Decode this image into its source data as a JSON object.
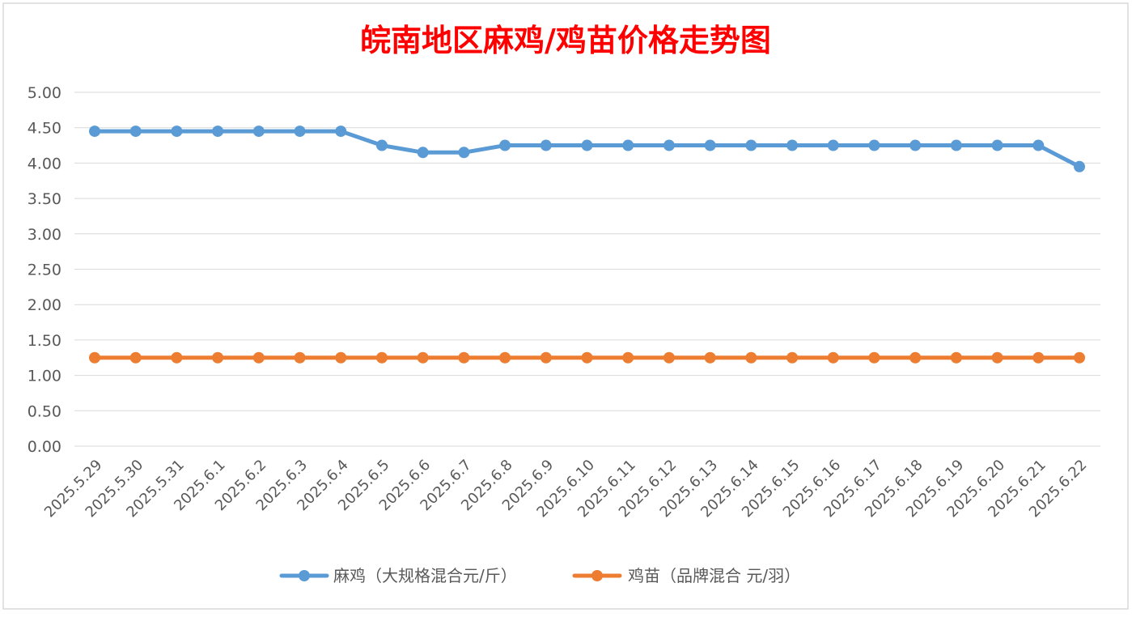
{
  "chart_data": {
    "type": "line",
    "title": "皖南地区麻鸡/鸡苗价格走势图",
    "title_color": "#ff0000",
    "categories": [
      "2025.5.29",
      "2025.5.30",
      "2025.5.31",
      "2025.6.1",
      "2025.6.2",
      "2025.6.3",
      "2025.6.4",
      "2025.6.5",
      "2025.6.6",
      "2025.6.7",
      "2025.6.8",
      "2025.6.9",
      "2025.6.10",
      "2025.6.11",
      "2025.6.12",
      "2025.6.13",
      "2025.6.14",
      "2025.6.15",
      "2025.6.16",
      "2025.6.17",
      "2025.6.18",
      "2025.6.19",
      "2025.6.20",
      "2025.6.21",
      "2025.6.22"
    ],
    "series": [
      {
        "name": "麻鸡（大规格混合元/斤）",
        "color": "#5b9bd5",
        "values": [
          4.45,
          4.45,
          4.45,
          4.45,
          4.45,
          4.45,
          4.45,
          4.25,
          4.15,
          4.15,
          4.25,
          4.25,
          4.25,
          4.25,
          4.25,
          4.25,
          4.25,
          4.25,
          4.25,
          4.25,
          4.25,
          4.25,
          4.25,
          4.25,
          3.95
        ]
      },
      {
        "name": "鸡苗（品牌混合 元/羽）",
        "color": "#ed7d31",
        "values": [
          1.25,
          1.25,
          1.25,
          1.25,
          1.25,
          1.25,
          1.25,
          1.25,
          1.25,
          1.25,
          1.25,
          1.25,
          1.25,
          1.25,
          1.25,
          1.25,
          1.25,
          1.25,
          1.25,
          1.25,
          1.25,
          1.25,
          1.25,
          1.25,
          1.25
        ]
      }
    ],
    "ylim": [
      0,
      5
    ],
    "ytick_step": 0.5,
    "ytick_decimals": 2,
    "grid": true,
    "legend_position": "bottom",
    "xlabel": "",
    "ylabel": ""
  }
}
